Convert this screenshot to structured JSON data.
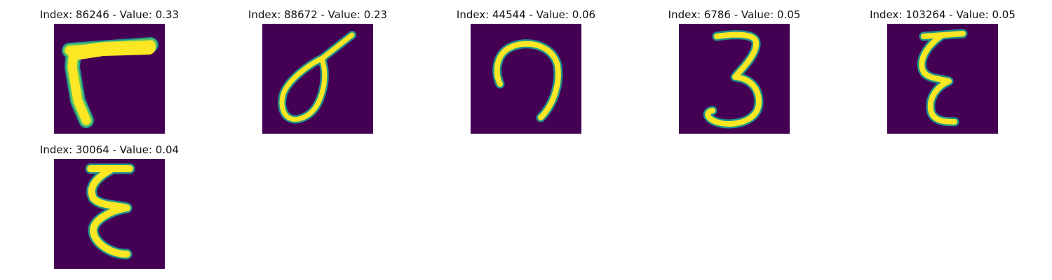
{
  "figure": {
    "colors": {
      "background": "#440154",
      "stroke_core": "#fde725",
      "stroke_mid": "#5ec962",
      "stroke_edge": "#21918c"
    },
    "panels": [
      {
        "title": "Index: 86246 - Value: 0.33",
        "glyph": "seven-like-stroke"
      },
      {
        "title": "Index: 88672 - Value: 0.23",
        "glyph": "loop-with-tail-stroke"
      },
      {
        "title": "Index: 44544 - Value: 0.06",
        "glyph": "arch-stroke"
      },
      {
        "title": "Index: 6786 - Value: 0.05",
        "glyph": "digit-three-stroke"
      },
      {
        "title": "Index: 103264 - Value: 0.05",
        "glyph": "epsilon-like-stroke"
      },
      {
        "title": "Index: 30064 - Value: 0.04",
        "glyph": "epsilon-like-stroke"
      }
    ]
  }
}
